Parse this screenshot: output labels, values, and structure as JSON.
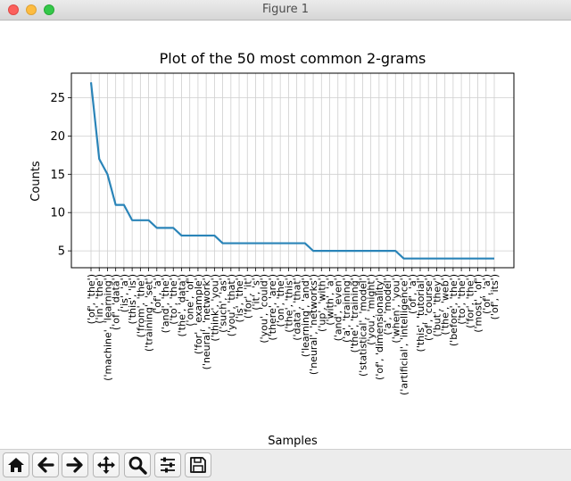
{
  "window": {
    "title": "Figure 1"
  },
  "toolbar": {
    "buttons": [
      {
        "icon": "home-icon"
      },
      {
        "icon": "back-arrow-icon"
      },
      {
        "icon": "forward-arrow-icon"
      },
      {
        "icon": "pan-icon"
      },
      {
        "icon": "zoom-icon"
      },
      {
        "icon": "configure-subplots-icon"
      },
      {
        "icon": "save-icon"
      }
    ]
  },
  "chart_data": {
    "type": "line",
    "title": "Plot of the 50 most common 2-grams",
    "xlabel": "Samples",
    "ylabel": "Counts",
    "ylim": [
      2.8,
      28.2
    ],
    "yticks": [
      5,
      10,
      15,
      20,
      25
    ],
    "grid": true,
    "line_color": "#2a84b8",
    "categories": [
      "('of', 'the')",
      "('in', 'the')",
      "('machine', 'learning')",
      "('of', 'data')",
      "('is', 'a')",
      "('this', 'is')",
      "('from', 'the')",
      "('training', 'set')",
      "('of', 'a')",
      "('and', 'the')",
      "('to', 'the')",
      "('the', 'data')",
      "('one', 'of')",
      "('for', 'example')",
      "('neural', 'network')",
      "('think', 'you')",
      "('such', 'as')",
      "('you', 'that')",
      "('is', 'the')",
      "('for', 'it')",
      "('it', 's')",
      "('you', 'could')",
      "('there', 'are')",
      "('on', 'the')",
      "('the', 'this')",
      "('data', 'that')",
      "('learning', 'and')",
      "('neural', 'networks')",
      "('up', 'with')",
      "('with', 'a')",
      "('and', 'even')",
      "('a', 'training')",
      "('the', 'training')",
      "('statistical', 'model')",
      "('you', 'might')",
      "('of', 'dimensionality')",
      "('a', 'model')",
      "('when', 'you')",
      "('artificial', 'intelligence')",
      "('of', 'a')",
      "('this', 'tutorial')",
      "('of', 'course')",
      "('but', 'they')",
      "('the', 'web')",
      "('before', 'the')",
      "('to', 'the')",
      "('for', 'the')",
      "('most', 'of')",
      "('of', 'a')",
      "('of', 'its')"
    ],
    "values": [
      27,
      17,
      15,
      11,
      11,
      9,
      9,
      9,
      8,
      8,
      8,
      7,
      7,
      7,
      7,
      7,
      6,
      6,
      6,
      6,
      6,
      6,
      6,
      6,
      6,
      6,
      6,
      5,
      5,
      5,
      5,
      5,
      5,
      5,
      5,
      5,
      5,
      5,
      4,
      4,
      4,
      4,
      4,
      4,
      4,
      4,
      4,
      4,
      4,
      4
    ]
  }
}
